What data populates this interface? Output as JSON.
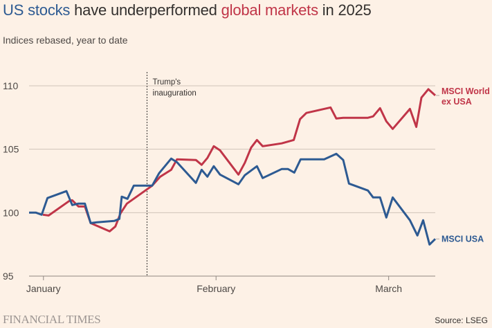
{
  "header": {
    "title_part1": "US stocks",
    "title_part2": " have underperformed ",
    "title_part3": "global markets",
    "title_part4": " in 2025",
    "subtitle": "Indices rebased, year to date"
  },
  "footer": {
    "brand": "FINANCIAL TIMES",
    "source": "Source: LSEG"
  },
  "colors": {
    "background": "#fdf1e6",
    "us": "#2d5a92",
    "world": "#c03548",
    "grid": "#cfc3b8"
  },
  "chart_data": {
    "type": "line",
    "title": "US stocks have underperformed global markets in 2025",
    "subtitle": "Indices rebased, year to date",
    "xlabel": "",
    "ylabel": "",
    "ylim": [
      95,
      110
    ],
    "yticks": [
      95,
      100,
      105,
      110
    ],
    "xrange_days": [
      0,
      68
    ],
    "xticks": [
      {
        "day": 2.5,
        "label": "January"
      },
      {
        "day": 32.5,
        "label": "February"
      },
      {
        "day": 62.5,
        "label": "March"
      }
    ],
    "grid": true,
    "annotation": {
      "day": 20.5,
      "lines": [
        "Trump's",
        "inauguration"
      ]
    },
    "series": [
      {
        "name": "MSCI USA",
        "label_lines": [
          "MSCI USA"
        ],
        "color": "#2d5a92",
        "days": [
          0,
          1.2,
          2.2,
          3.2,
          6.5,
          7.5,
          8.5,
          9.7,
          10.7,
          11.8,
          14.8,
          15.7,
          16.1,
          17.1,
          18.2,
          21.4,
          22.6,
          24.7,
          25.7,
          29,
          30,
          31,
          32.1,
          33.2,
          36.4,
          37.5,
          39.6,
          40.6,
          43.9,
          45,
          46.1,
          47.2,
          51.3,
          53.4,
          54.6,
          55.6,
          58.9,
          59.8,
          61,
          62.1,
          63.2,
          66.2,
          67.5,
          68.5,
          69.6,
          70.6
        ],
        "values": [
          100,
          100,
          99.84,
          101.15,
          101.7,
          100.6,
          100.71,
          100.71,
          99.18,
          99.24,
          99.35,
          99.51,
          101.26,
          101.09,
          102.13,
          102.13,
          103.11,
          104.26,
          103.98,
          102.35,
          103.38,
          102.84,
          103.66,
          103,
          102.24,
          102.95,
          103.66,
          102.73,
          103.44,
          103.44,
          103.16,
          104.2,
          104.2,
          104.64,
          104.15,
          102.29,
          101.75,
          101.2,
          101.2,
          99.62,
          101.2,
          99.4,
          98.2,
          99.4,
          97.49,
          97.93
        ]
      },
      {
        "name": "MSCI World ex USA",
        "label_lines": [
          "MSCI World",
          "ex USA"
        ],
        "color": "#c03548",
        "days": [
          2.4,
          3.4,
          7,
          7.5,
          8.6,
          9.7,
          10.7,
          14,
          15,
          15.9,
          17,
          21.4,
          22.8,
          24.7,
          25.7,
          29,
          30,
          31,
          32.1,
          33.2,
          36.4,
          37.5,
          38.6,
          39.6,
          40.6,
          43.9,
          46,
          47.1,
          48.2,
          52.4,
          53.4,
          54.6,
          58.9,
          59.8,
          61,
          62.1,
          63.2,
          66.2,
          67.3,
          68.2,
          69.4,
          70.6
        ],
        "values": [
          99.84,
          99.78,
          100.93,
          100.98,
          100.49,
          100.49,
          99.18,
          98.53,
          98.91,
          99.95,
          100.71,
          102.13,
          102.84,
          103.38,
          104.2,
          104.15,
          103.77,
          104.31,
          105.24,
          104.91,
          103,
          103.93,
          105.13,
          105.73,
          105.24,
          105.46,
          105.73,
          107.37,
          107.86,
          108.29,
          107.42,
          107.48,
          107.48,
          107.59,
          108.24,
          107.2,
          106.6,
          108.18,
          106.76,
          109.07,
          109.73,
          109.24
        ]
      }
    ]
  }
}
